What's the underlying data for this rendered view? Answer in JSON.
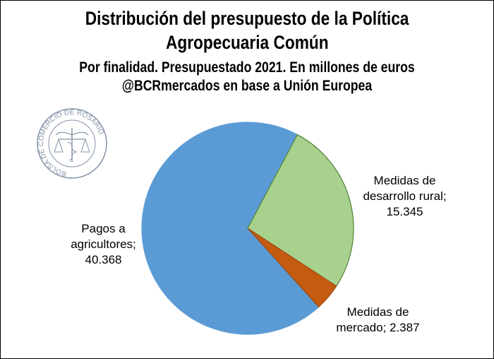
{
  "chart_data": {
    "type": "pie",
    "title": "Distribución del presupuesto de la Política Agropecuaria Común",
    "title_lines": [
      "Distribución del presupuesto de la Política",
      "Agropecuaria Común"
    ],
    "subtitle": "Por finalidad. Presupuestado 2021.  En millones de euros",
    "source": "@BCRmercados en base a Unión Europea",
    "slices": [
      {
        "name": "Medidas de desarrollo rural",
        "value": 15345,
        "label_lines": [
          "Medidas de",
          "desarrollo rural;",
          "15.345"
        ],
        "color": "#A9D18E",
        "stroke": "#548235"
      },
      {
        "name": "Medidas de mercado",
        "value": 2387,
        "label_lines": [
          "Medidas de",
          "mercado; 2.387"
        ],
        "color": "#C55A11",
        "stroke": "#9E4A10"
      },
      {
        "name": "Pagos a agricultores",
        "value": 40368,
        "label_lines": [
          "Pagos a",
          "agricultores;",
          "40.368"
        ],
        "color": "#5B9BD5",
        "stroke": "#5B9BD5"
      }
    ],
    "start_angle_deg": 28
  },
  "logo": {
    "text": "BOLSA DE COMERCIO DE ROSARIO"
  }
}
